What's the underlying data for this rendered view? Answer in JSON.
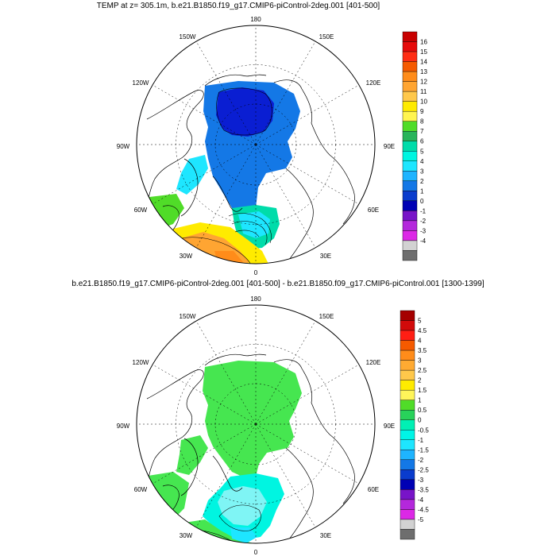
{
  "top_panel": {
    "title": "TEMP at z= 305.1m, b.e21.B1850.f19_g17.CMIP6-piControl-2deg.001 [401-500]",
    "lon_labels": {
      "180": "180",
      "150E": "150E",
      "120E": "120E",
      "90E": "90E",
      "60E": "60E",
      "30E": "30E",
      "0": "0",
      "30W": "30W",
      "60W": "60W",
      "90W": "90W",
      "120W": "120W",
      "150W": "150W"
    },
    "colorbar": {
      "labels": [
        "16",
        "15",
        "14",
        "13",
        "12",
        "11",
        "10",
        "9",
        "8",
        "7",
        "6",
        "5",
        "4",
        "3",
        "2",
        "1",
        "0",
        "-1",
        "-2",
        "-3",
        "-4"
      ],
      "colors": [
        "#c80000",
        "#e60a0a",
        "#ff2d14",
        "#f55a00",
        "#ff8c1a",
        "#ffa532",
        "#ffc84b",
        "#ffeb00",
        "#fff550",
        "#50dc28",
        "#28b45a",
        "#00dcaa",
        "#00f5e1",
        "#1ee6ff",
        "#1eb4ff",
        "#1478e6",
        "#0a3ccd",
        "#0000b4",
        "#7814c8",
        "#b428dc",
        "#dc28e6",
        "#d2d2d2",
        "#6e6e6e"
      ]
    }
  },
  "bottom_panel": {
    "title": "b.e21.B1850.f19_g17.CMIP6-piControl-2deg.001 [401-500] - b.e21.B1850.f09_g17.CMIP6-piControl.001 [1300-1399]",
    "lon_labels": {
      "180": "180",
      "150E": "150E",
      "120E": "120E",
      "90E": "90E",
      "60E": "60E",
      "30E": "30E",
      "0": "0",
      "30W": "30W",
      "60W": "60W",
      "90W": "90W",
      "120W": "120W",
      "150W": "150W"
    },
    "colorbar": {
      "labels": [
        "5",
        "4.5",
        "4",
        "3.5",
        "3",
        "2.5",
        "2",
        "1.5",
        "1",
        "0.5",
        "0",
        "-0.5",
        "-1",
        "-1.5",
        "-2",
        "-2.5",
        "-3",
        "-3.5",
        "-4",
        "-4.5",
        "-5"
      ],
      "colors": [
        "#a50000",
        "#d20a0a",
        "#ff1e14",
        "#f55a00",
        "#ff8c1a",
        "#ffaa32",
        "#ffc84b",
        "#ffeb00",
        "#fff55a",
        "#50dc28",
        "#28d25a",
        "#00f0b4",
        "#00f5e6",
        "#1ee6ff",
        "#1eb4ff",
        "#1478e6",
        "#0a3ccd",
        "#0000b4",
        "#7814c8",
        "#b428dc",
        "#dc28e6",
        "#d2d2d2",
        "#6e6e6e"
      ]
    }
  },
  "colors": {
    "map_outline": "#000000",
    "land_contour": "#000000",
    "graticule": "#000000",
    "deep_blue": "#0a1ed2",
    "mid_blue": "#1478e6",
    "cyan": "#1ee6ff",
    "aqua": "#00f5e1",
    "green": "#50dc28",
    "bright_green": "#46e650",
    "yellow": "#ffeb00",
    "orange": "#ffa532",
    "orange2": "#ff8c1a",
    "lightcyan": "#7ff5f5"
  }
}
